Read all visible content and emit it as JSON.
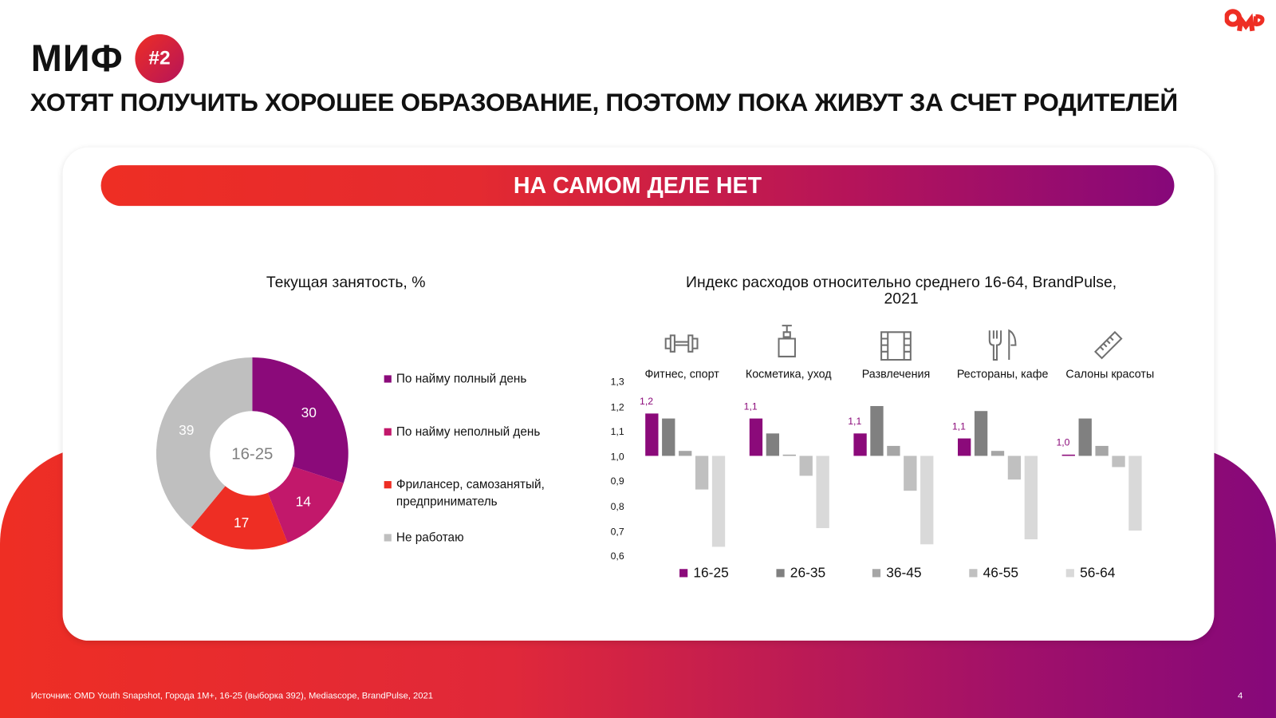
{
  "header": {
    "myth_label": "МИФ",
    "myth_number": "#2",
    "headline": "ХОТЯТ ПОЛУЧИТЬ ХОРОШЕЕ ОБРАЗОВАНИЕ, ПОЭТОМУ ПОКА ЖИВУТ ЗА СЧЕТ РОДИТЕЛЕЙ",
    "logo_text": "OMD"
  },
  "banner": {
    "text": "НА САМОМ ДЕЛЕ НЕТ"
  },
  "colors": {
    "red": "#ee2e24",
    "purple": "#86087a",
    "magenta": "#c2186b",
    "gray": "#bfbfbf"
  },
  "chart_data": [
    {
      "type": "pie",
      "title": "Текущая занятость, %",
      "center_label": "16-25",
      "slices": [
        {
          "name": "По найму полный день",
          "value": 30,
          "color": "#8b0a7a"
        },
        {
          "name": "По найму неполный день",
          "value": 14,
          "color": "#c2186b"
        },
        {
          "name": "Фрилансер, самозанятый, предприниматель",
          "value": 17,
          "color": "#ee2e24"
        },
        {
          "name": "Не работаю",
          "value": 39,
          "color": "#bfbfbf"
        }
      ],
      "legend_placement": "right"
    },
    {
      "type": "bar",
      "title": "Индекс расходов относительно среднего 16-64, BrandPulse, 2021",
      "categories": [
        "Фитнес, спорт",
        "Косметика, уход",
        "Развлечения",
        "Рестораны, кафе",
        "Салоны красоты"
      ],
      "category_icons": [
        "dumbbell-icon",
        "lotion-bottle-icon",
        "film-icon",
        "fork-knife-icon",
        "comb-icon"
      ],
      "baseline": 1.0,
      "ylim": [
        0.6,
        1.3
      ],
      "yticks": [
        "1,3",
        "1,2",
        "1,1",
        "1,0",
        "0,9",
        "0,8",
        "0,7",
        "0,6"
      ],
      "series": [
        {
          "name": "16-25",
          "color": "#8b0a7a",
          "values": [
            1.17,
            1.15,
            1.09,
            1.07,
            1.005
          ],
          "labels": [
            "1,2",
            "1,1",
            "1,1",
            "1,1",
            "1,0"
          ]
        },
        {
          "name": "26-35",
          "color": "#808080",
          "values": [
            1.15,
            1.09,
            1.2,
            1.18,
            1.15
          ]
        },
        {
          "name": "36-45",
          "color": "#a6a6a6",
          "values": [
            1.02,
            1.005,
            1.04,
            1.02,
            1.04
          ]
        },
        {
          "name": "46-55",
          "color": "#c0c0c0",
          "values": [
            0.865,
            0.92,
            0.86,
            0.905,
            0.955
          ]
        },
        {
          "name": "56-64",
          "color": "#d9d9d9",
          "values": [
            0.635,
            0.71,
            0.645,
            0.665,
            0.7
          ]
        }
      ],
      "legend_placement": "bottom"
    }
  ],
  "footer": {
    "source": "Источник: OMD Youth Snapshot, Города 1M+, 16-25 (выборка 392), Mediascope, BrandPulse, 2021",
    "page": "4"
  }
}
